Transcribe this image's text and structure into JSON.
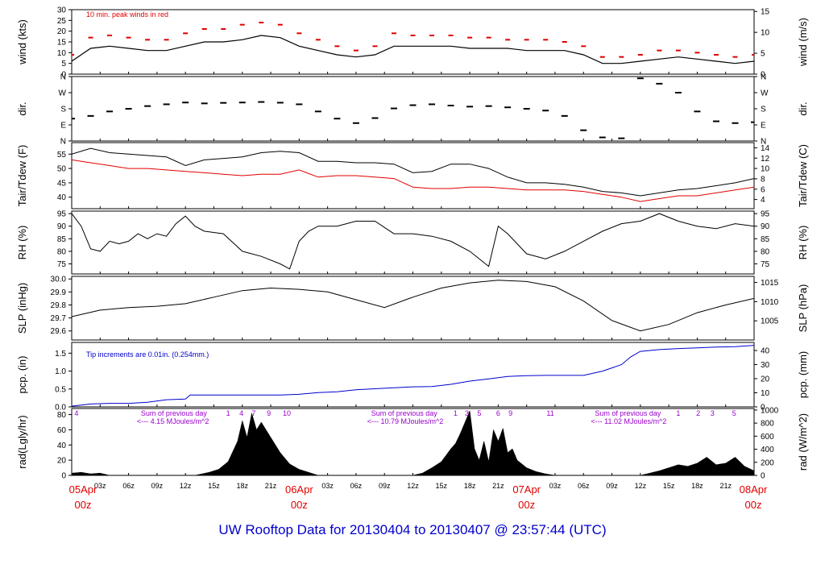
{
  "title": "UW Rooftop Data for 20130404  to  20130407 @ 23:57:44  (UTC)",
  "colors": {
    "frame": "#000000",
    "peak": "#e00000",
    "dew": "#e00000",
    "precip": "#0000cc",
    "note": "#9900cc",
    "date": "#e00000",
    "title": "#0000cc"
  },
  "time_axis": {
    "hour_ticks": [
      0,
      3,
      6,
      9,
      12,
      15,
      18,
      21,
      24,
      27,
      30,
      33,
      36,
      39,
      42,
      45,
      48,
      51,
      54,
      57,
      60,
      63,
      66,
      69,
      72
    ],
    "hour_labels": [
      "03z",
      "06z",
      "09z",
      "12z",
      "15z",
      "18z",
      "21z",
      "03z",
      "06z",
      "09z",
      "12z",
      "15z",
      "18z",
      "21z",
      "03z",
      "06z",
      "09z",
      "12z",
      "15z",
      "18z",
      "21z"
    ],
    "hour_label_hours": [
      3,
      6,
      9,
      12,
      15,
      18,
      21,
      27,
      30,
      33,
      36,
      39,
      42,
      45,
      51,
      54,
      57,
      60,
      63,
      66,
      69
    ],
    "day_labels": [
      {
        "hour": 0,
        "date": "05Apr",
        "time": "00z"
      },
      {
        "hour": 24,
        "date": "06Apr",
        "time": "00z"
      },
      {
        "hour": 48,
        "date": "07Apr",
        "time": "00z"
      },
      {
        "hour": 72,
        "date": "08Apr",
        "time": "00z"
      }
    ]
  },
  "chart_data": [
    {
      "type": "line",
      "name": "wind",
      "ylabel": "wind (kts)",
      "ylabel_right": "wind (m/s)",
      "ylim": [
        0,
        30
      ],
      "yticks": [
        0,
        5,
        10,
        15,
        20,
        25,
        30
      ],
      "yticks_right": [
        0,
        5,
        10,
        15
      ],
      "right_scale": 0.5144,
      "annotation": "10 min. peak winds in red",
      "series": [
        {
          "x": [
            0,
            2,
            4,
            6,
            8,
            10,
            12,
            14,
            16,
            18,
            20,
            22,
            24,
            26,
            28,
            30,
            32,
            34,
            36,
            38,
            40,
            42,
            44,
            46,
            48,
            50,
            52,
            54,
            56,
            58,
            60,
            62,
            64,
            66,
            68,
            70,
            72
          ],
          "y": [
            6,
            12,
            13,
            12,
            11,
            11,
            13,
            15,
            15,
            16,
            18,
            17,
            13,
            11,
            9,
            8,
            9,
            13,
            13,
            13,
            13,
            12,
            12,
            12,
            11,
            11,
            11,
            9,
            5,
            5,
            6,
            7,
            8,
            7,
            6,
            5,
            6
          ]
        },
        {
          "x": [
            0,
            2,
            4,
            6,
            8,
            10,
            12,
            14,
            16,
            18,
            20,
            22,
            24,
            26,
            28,
            30,
            32,
            34,
            36,
            38,
            40,
            42,
            44,
            46,
            48,
            50,
            52,
            54,
            56,
            58,
            60,
            62,
            64,
            66,
            68,
            70,
            72
          ],
          "y": [
            9,
            17,
            18,
            17,
            16,
            16,
            19,
            21,
            21,
            23,
            24,
            23,
            19,
            16,
            13,
            11,
            13,
            19,
            18,
            18,
            18,
            17,
            17,
            16,
            16,
            16,
            15,
            13,
            8,
            8,
            9,
            11,
            11,
            10,
            9,
            8,
            9
          ]
        }
      ]
    },
    {
      "type": "scatter",
      "name": "dir",
      "ylabel": "dir.",
      "ylabel_right": "dir.",
      "ylim": [
        0,
        360
      ],
      "yticks": [
        0,
        90,
        180,
        270,
        360
      ],
      "yticklabels": [
        "N",
        "E",
        "S",
        "W",
        "N"
      ],
      "series": [
        {
          "x": [
            0,
            2,
            4,
            6,
            8,
            10,
            12,
            14,
            16,
            18,
            20,
            22,
            24,
            26,
            28,
            30,
            32,
            34,
            36,
            38,
            40,
            42,
            44,
            46,
            48,
            50,
            52,
            54,
            56,
            58,
            60,
            62,
            64,
            66,
            68,
            70,
            72
          ],
          "y": [
            125,
            140,
            165,
            180,
            195,
            205,
            215,
            210,
            213,
            215,
            218,
            214,
            205,
            165,
            125,
            100,
            128,
            182,
            200,
            205,
            198,
            192,
            195,
            188,
            180,
            170,
            140,
            60,
            20,
            15,
            350,
            320,
            270,
            165,
            110,
            100,
            105
          ]
        }
      ]
    },
    {
      "type": "line",
      "name": "temperature",
      "ylabel": "Tair/Tdew (F)",
      "ylabel_right": "Tair/Tdew (C)",
      "ylim": [
        36,
        59
      ],
      "yticks": [
        40,
        45,
        50,
        55
      ],
      "yticks_right": [
        4,
        6,
        8,
        10,
        12,
        14
      ],
      "series": [
        {
          "name": "Tair",
          "x": [
            0,
            2,
            4,
            6,
            8,
            10,
            12,
            14,
            16,
            18,
            20,
            22,
            24,
            26,
            28,
            30,
            32,
            34,
            36,
            38,
            40,
            42,
            44,
            46,
            48,
            50,
            52,
            54,
            56,
            58,
            60,
            62,
            64,
            66,
            68,
            70,
            72
          ],
          "y": [
            55,
            57,
            55.5,
            55,
            54.5,
            54,
            51,
            53,
            53.5,
            54,
            55.5,
            56,
            55.5,
            52.5,
            52.5,
            52,
            52,
            51.5,
            48.5,
            49,
            51.5,
            51.5,
            50,
            47,
            45,
            45,
            44.5,
            43.5,
            42,
            41.5,
            40.5,
            41.5,
            42.5,
            43,
            44,
            45,
            46.5
          ]
        },
        {
          "name": "Tdew",
          "x": [
            0,
            2,
            4,
            6,
            8,
            10,
            12,
            14,
            16,
            18,
            20,
            22,
            24,
            26,
            28,
            30,
            32,
            34,
            36,
            38,
            40,
            42,
            44,
            46,
            48,
            50,
            52,
            54,
            56,
            58,
            60,
            62,
            64,
            66,
            68,
            70,
            72
          ],
          "y": [
            53,
            52,
            51,
            50,
            50,
            49.5,
            49,
            48.5,
            48,
            47.5,
            48,
            48,
            49.5,
            47,
            47.5,
            47.5,
            47,
            46.5,
            43.5,
            43,
            43,
            43.5,
            43.5,
            43,
            42.5,
            42.5,
            42.5,
            42,
            41,
            40,
            38.5,
            39.5,
            40.5,
            40.5,
            41.5,
            42.5,
            43.5
          ]
        }
      ]
    },
    {
      "type": "line",
      "name": "rh",
      "ylabel": "RH (%)",
      "ylabel_right": "RH (%)",
      "ylim": [
        71,
        96
      ],
      "yticks": [
        75,
        80,
        85,
        90,
        95
      ],
      "series": [
        {
          "x": [
            0,
            1,
            2,
            3,
            4,
            5,
            6,
            7,
            8,
            9,
            10,
            11,
            12,
            13,
            14,
            16,
            18,
            20,
            22,
            23,
            24,
            25,
            26,
            28,
            30,
            32,
            34,
            36,
            38,
            40,
            42,
            44,
            45,
            46,
            47,
            48,
            50,
            52,
            54,
            56,
            58,
            60,
            62,
            64,
            66,
            68,
            70,
            72
          ],
          "y": [
            95,
            90,
            81,
            80,
            84,
            83,
            84,
            87,
            85,
            87,
            86,
            91,
            94,
            90,
            88,
            87,
            80,
            78,
            75,
            73,
            84,
            88,
            90,
            90,
            92,
            92,
            87,
            87,
            86,
            84,
            80,
            74,
            90,
            87,
            83,
            79,
            77,
            80,
            84,
            88,
            91,
            92,
            95,
            92,
            90,
            89,
            91,
            90
          ]
        }
      ]
    },
    {
      "type": "line",
      "name": "pressure",
      "ylabel": "SLP (inHg)",
      "ylabel_right": "SLP (hPa)",
      "ylim": [
        29.53,
        30.02
      ],
      "yticks": [
        29.6,
        29.7,
        29.8,
        29.9,
        30.0
      ],
      "yticklabels": [
        "29.6",
        "29.7",
        "29.8",
        "29.9",
        "30.0"
      ],
      "yticks_right_hpa": [
        1005,
        1010,
        1015
      ],
      "series": [
        {
          "x": [
            0,
            3,
            6,
            9,
            12,
            15,
            18,
            21,
            24,
            27,
            30,
            33,
            36,
            39,
            42,
            45,
            48,
            51,
            54,
            57,
            60,
            63,
            66,
            69,
            72
          ],
          "y": [
            29.71,
            29.76,
            29.78,
            29.79,
            29.81,
            29.86,
            29.91,
            29.93,
            29.92,
            29.9,
            29.84,
            29.78,
            29.86,
            29.93,
            29.97,
            29.99,
            29.98,
            29.94,
            29.83,
            29.68,
            29.6,
            29.65,
            29.74,
            29.8,
            29.85
          ]
        }
      ]
    },
    {
      "type": "area",
      "name": "precip",
      "ylabel": "pcp. (in)",
      "ylabel_right": "pcp. (mm)",
      "ylim": [
        0,
        1.8
      ],
      "yticks": [
        0,
        0.5,
        1.0,
        1.5
      ],
      "yticklabels": [
        "0.0",
        "0.5",
        "1.0",
        "1.5"
      ],
      "yticks_right": [
        0,
        10,
        20,
        30,
        40
      ],
      "right_scale": 25.4,
      "annotation": "Tip increments are 0.01in. (0.254mm.)",
      "series": [
        {
          "x": [
            0,
            2,
            4,
            6,
            8,
            10,
            12,
            12.5,
            14,
            18,
            22,
            24,
            26,
            28,
            30,
            33,
            36,
            38,
            40,
            42,
            44,
            46,
            48,
            50,
            52,
            54,
            56,
            58,
            59,
            60,
            62,
            64,
            66,
            68,
            70,
            72
          ],
          "y": [
            0.02,
            0.08,
            0.1,
            0.1,
            0.13,
            0.2,
            0.22,
            0.33,
            0.33,
            0.33,
            0.33,
            0.35,
            0.4,
            0.42,
            0.48,
            0.52,
            0.56,
            0.57,
            0.63,
            0.72,
            0.78,
            0.85,
            0.87,
            0.88,
            0.88,
            0.88,
            1.0,
            1.18,
            1.4,
            1.55,
            1.6,
            1.63,
            1.65,
            1.67,
            1.68,
            1.72
          ]
        }
      ]
    },
    {
      "type": "area",
      "name": "radiation",
      "ylabel": "rad(Lgly/hr)",
      "ylabel_right": "rad (W/m^2)",
      "ylim": [
        0,
        88
      ],
      "yticks": [
        0,
        20,
        40,
        60,
        80
      ],
      "yticks_right": [
        0,
        200,
        400,
        600,
        800,
        1000
      ],
      "right_scale": 11.63,
      "hour_marks": [
        {
          "hour": 0.5,
          "label": "4"
        },
        {
          "hour": 16.5,
          "label": "1"
        },
        {
          "hour": 17.9,
          "label": "4"
        },
        {
          "hour": 19.2,
          "label": "7"
        },
        {
          "hour": 20.8,
          "label": "9"
        },
        {
          "hour": 22.7,
          "label": "10"
        },
        {
          "hour": 40.5,
          "label": "1"
        },
        {
          "hour": 41.7,
          "label": "3"
        },
        {
          "hour": 43,
          "label": "5"
        },
        {
          "hour": 45,
          "label": "6"
        },
        {
          "hour": 46.3,
          "label": "9"
        },
        {
          "hour": 50.5,
          "label": "11"
        },
        {
          "hour": 64,
          "label": "1"
        },
        {
          "hour": 66.1,
          "label": "2"
        },
        {
          "hour": 67.6,
          "label": "3"
        },
        {
          "hour": 69.9,
          "label": "5"
        }
      ],
      "notes": [
        {
          "hour": 7.3,
          "line1": "Sum of previous day",
          "line2": "<--- 4.15 MJoules/m^2"
        },
        {
          "hour": 31.6,
          "line1": "Sum of previous day",
          "line2": "<--- 10.79 MJoules/m^2"
        },
        {
          "hour": 55.2,
          "line1": "Sum of previous day",
          "line2": "<--- 11.02 MJoules/m^2"
        }
      ],
      "series": [
        {
          "x": [
            0,
            1,
            2,
            3,
            4,
            13,
            14.5,
            15.5,
            16.5,
            17.5,
            18,
            18.5,
            19,
            19.5,
            20,
            21,
            22,
            23,
            24,
            25,
            26,
            36,
            37,
            38,
            39,
            40,
            40.5,
            41,
            41.5,
            42,
            42.5,
            43,
            43.5,
            44,
            44.5,
            45,
            45.5,
            46,
            46.5,
            47,
            48,
            49,
            50,
            51,
            52,
            60,
            61,
            62,
            63,
            64,
            65,
            66,
            67,
            68,
            69,
            70,
            71,
            72
          ],
          "y": [
            3,
            4,
            2,
            3,
            0,
            0,
            4,
            8,
            18,
            45,
            72,
            50,
            82,
            60,
            70,
            50,
            30,
            15,
            8,
            4,
            0,
            0,
            3,
            10,
            18,
            35,
            42,
            55,
            70,
            85,
            35,
            20,
            45,
            18,
            60,
            45,
            62,
            30,
            35,
            20,
            10,
            5,
            2,
            0,
            0,
            0,
            3,
            6,
            10,
            14,
            12,
            16,
            24,
            14,
            16,
            24,
            12,
            6
          ]
        }
      ]
    }
  ]
}
